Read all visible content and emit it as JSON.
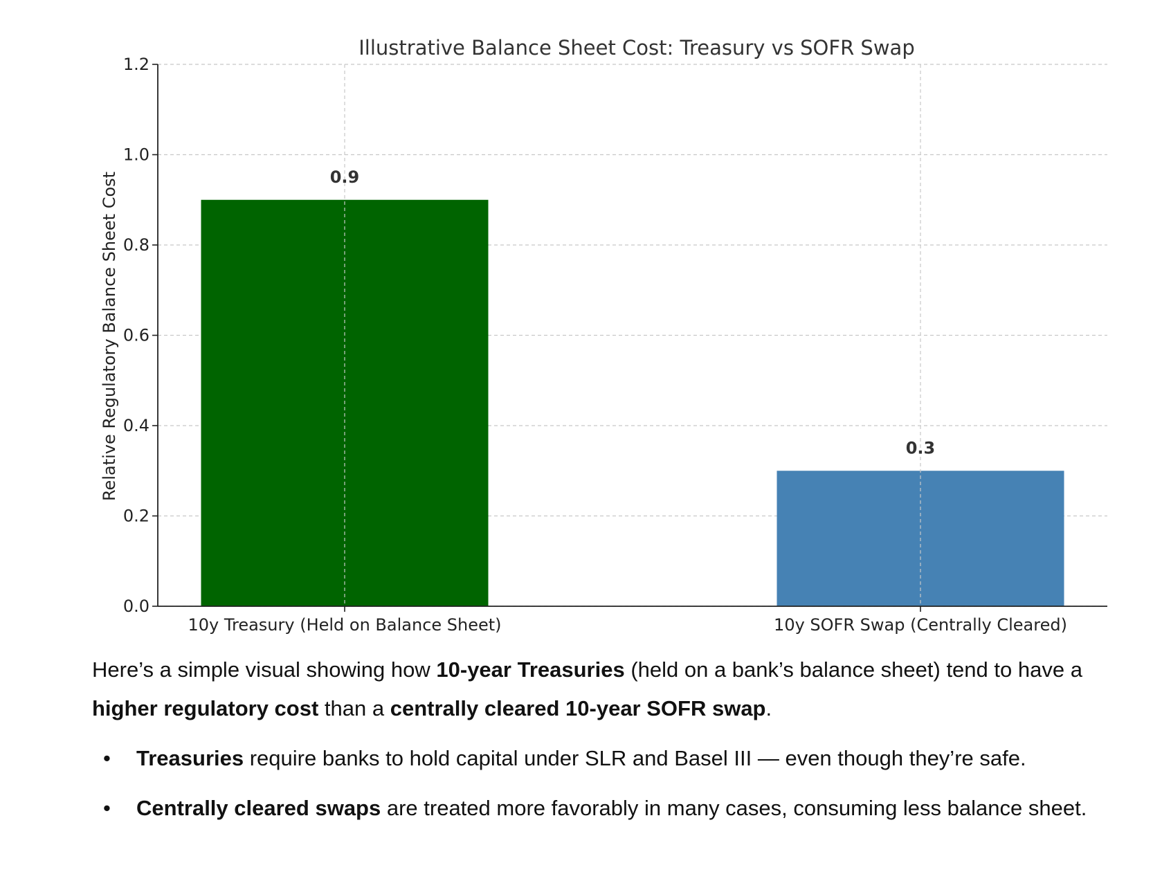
{
  "chart_data": {
    "type": "bar",
    "title": "Illustrative Balance Sheet Cost: Treasury vs SOFR Swap",
    "xlabel": "",
    "ylabel": "Relative Regulatory Balance Sheet Cost",
    "categories": [
      "10y Treasury (Held on Balance Sheet)",
      "10y SOFR Swap (Centrally Cleared)"
    ],
    "values": [
      0.9,
      0.3
    ],
    "value_labels": [
      "0.9",
      "0.3"
    ],
    "colors": [
      "#006400",
      "#4682B4"
    ],
    "ylim": [
      0,
      1.2
    ],
    "yticks": [
      0.0,
      0.2,
      0.4,
      0.6,
      0.8,
      1.0,
      1.2
    ],
    "ytick_labels": [
      "0.0",
      "0.2",
      "0.4",
      "0.6",
      "0.8",
      "1.0",
      "1.2"
    ],
    "grid": true,
    "legend": "none"
  },
  "explanation": {
    "intro": [
      {
        "text": "Here’s a simple visual showing how ",
        "bold": false
      },
      {
        "text": "10-year Treasuries",
        "bold": true
      },
      {
        "text": " (held on a bank’s balance sheet) tend to have a ",
        "bold": false
      },
      {
        "text": "higher regulatory cost",
        "bold": true
      },
      {
        "text": " than a ",
        "bold": false
      },
      {
        "text": "centrally cleared 10-year SOFR swap",
        "bold": true
      },
      {
        "text": ".",
        "bold": false
      }
    ],
    "bullet_symbol": "•",
    "bullets": [
      [
        {
          "text": "Treasuries",
          "bold": true
        },
        {
          "text": " require banks to hold capital under SLR and Basel III — even though they’re safe.",
          "bold": false
        }
      ],
      [
        {
          "text": "Centrally cleared swaps",
          "bold": true
        },
        {
          "text": " are treated more favorably in many cases, consuming less balance sheet.",
          "bold": false
        }
      ]
    ]
  }
}
